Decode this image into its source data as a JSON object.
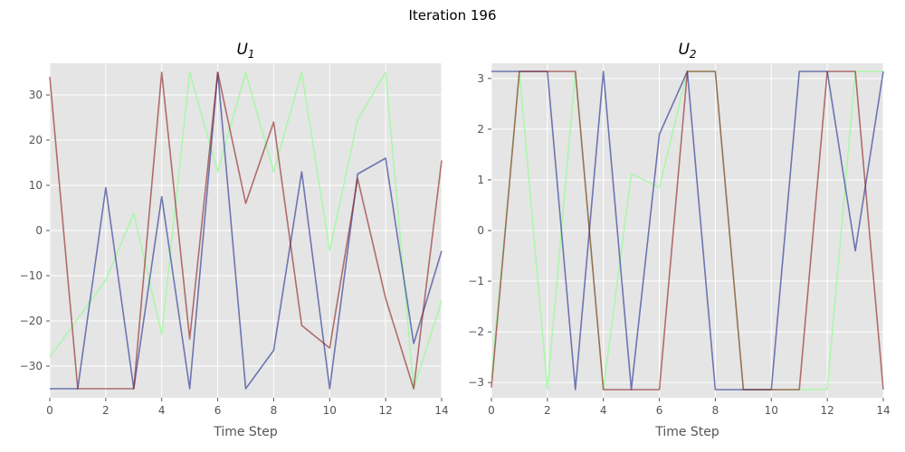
{
  "figure": {
    "title": "Iteration 196"
  },
  "colors": {
    "panel_bg": "#E5E5E5",
    "grid": "#FFFFFF",
    "series": [
      "#98FB98",
      "#1E2A8C",
      "#8B1A1A"
    ]
  },
  "chart_data": [
    {
      "type": "line",
      "title": "U",
      "title_sub": "1",
      "xlabel": "Time Step",
      "ylabel": "",
      "xlim": [
        0,
        14
      ],
      "ylim": [
        -37,
        37
      ],
      "xticks": [
        0,
        2,
        4,
        6,
        8,
        10,
        12,
        14
      ],
      "yticks": [
        -30,
        -20,
        -10,
        0,
        10,
        20,
        30
      ],
      "xtick_labels": [
        "0",
        "2",
        "4",
        "6",
        "8",
        "10",
        "12",
        "14"
      ],
      "ytick_labels": [
        "−30",
        "−20",
        "−10",
        "0",
        "10",
        "20",
        "30"
      ],
      "grid": true,
      "x": [
        0,
        1,
        2,
        3,
        4,
        5,
        6,
        7,
        8,
        9,
        10,
        11,
        12,
        13,
        14
      ],
      "series": [
        {
          "values": [
            -28,
            -19.5,
            -11,
            3.8,
            -23,
            35,
            13,
            35,
            13,
            35,
            -4.5,
            24.5,
            35,
            -35,
            -15.5
          ]
        },
        {
          "values": [
            -35,
            -35,
            9.5,
            -35,
            7.5,
            -35,
            35,
            -35,
            -26.5,
            13,
            -35,
            12.5,
            16,
            -25,
            -4.5
          ]
        },
        {
          "values": [
            34,
            -35,
            -35,
            -35,
            35,
            -24,
            35,
            6,
            24,
            -21,
            -26,
            11.5,
            -15,
            -35,
            15.5
          ]
        }
      ]
    },
    {
      "type": "line",
      "title": "U",
      "title_sub": "2",
      "xlabel": "Time Step",
      "ylabel": "",
      "xlim": [
        0,
        14
      ],
      "ylim": [
        -3.3,
        3.3
      ],
      "xticks": [
        0,
        2,
        4,
        6,
        8,
        10,
        12,
        14
      ],
      "yticks": [
        -3,
        -2,
        -1,
        0,
        1,
        2,
        3
      ],
      "xtick_labels": [
        "0",
        "2",
        "4",
        "6",
        "8",
        "10",
        "12",
        "14"
      ],
      "ytick_labels": [
        "−3",
        "−2",
        "−1",
        "0",
        "1",
        "2",
        "3"
      ],
      "grid": true,
      "x": [
        0,
        1,
        2,
        3,
        4,
        5,
        6,
        7,
        8,
        9,
        10,
        11,
        12,
        13,
        14
      ],
      "series": [
        {
          "values": [
            -2.9,
            3.14,
            -3.14,
            3.14,
            -3.14,
            1.12,
            0.85,
            3.14,
            3.14,
            -3.14,
            -3.14,
            -3.14,
            -3.14,
            3.14,
            3.14
          ]
        },
        {
          "values": [
            3.14,
            3.14,
            3.14,
            -3.14,
            3.14,
            -3.14,
            1.9,
            3.14,
            -3.14,
            -3.14,
            -3.14,
            3.14,
            3.14,
            -0.4,
            3.14
          ]
        },
        {
          "values": [
            -3.1,
            3.14,
            3.14,
            3.14,
            -3.14,
            -3.14,
            -3.14,
            3.14,
            3.14,
            -3.14,
            -3.14,
            -3.14,
            3.14,
            3.14,
            -3.14
          ]
        }
      ]
    }
  ]
}
